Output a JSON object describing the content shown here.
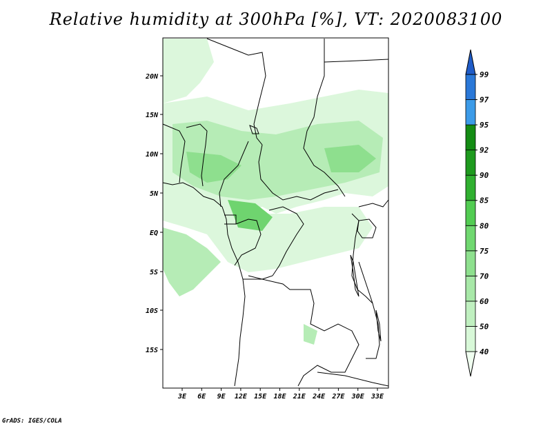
{
  "title": "Relative humidity at 300hPa [%], VT: 2020083100",
  "credit": "GrADS: IGES/COLA",
  "axes": {
    "x_ticks": [
      "3E",
      "6E",
      "9E",
      "12E",
      "15E",
      "18E",
      "21E",
      "24E",
      "27E",
      "30E",
      "33E"
    ],
    "y_ticks": [
      "20N",
      "15N",
      "10N",
      "5N",
      "EQ",
      "5S",
      "10S",
      "15S"
    ]
  },
  "colorbar": {
    "levels": [
      "40",
      "50",
      "60",
      "70",
      "75",
      "80",
      "85",
      "90",
      "92",
      "95",
      "97",
      "99"
    ],
    "colors": [
      "#f0fff0",
      "#d8f8d8",
      "#c0f0c0",
      "#a8e8a8",
      "#8ee08e",
      "#70d870",
      "#52cc52",
      "#30b030",
      "#1e9a1e",
      "#148c14",
      "#3c9be8",
      "#2a78d8",
      "#1f5cc8"
    ]
  },
  "fill_colors": {
    "light": "#dcf7dc",
    "medium": "#b6ecb6",
    "strong": "#8edf8e",
    "deep": "#6fd46f"
  }
}
